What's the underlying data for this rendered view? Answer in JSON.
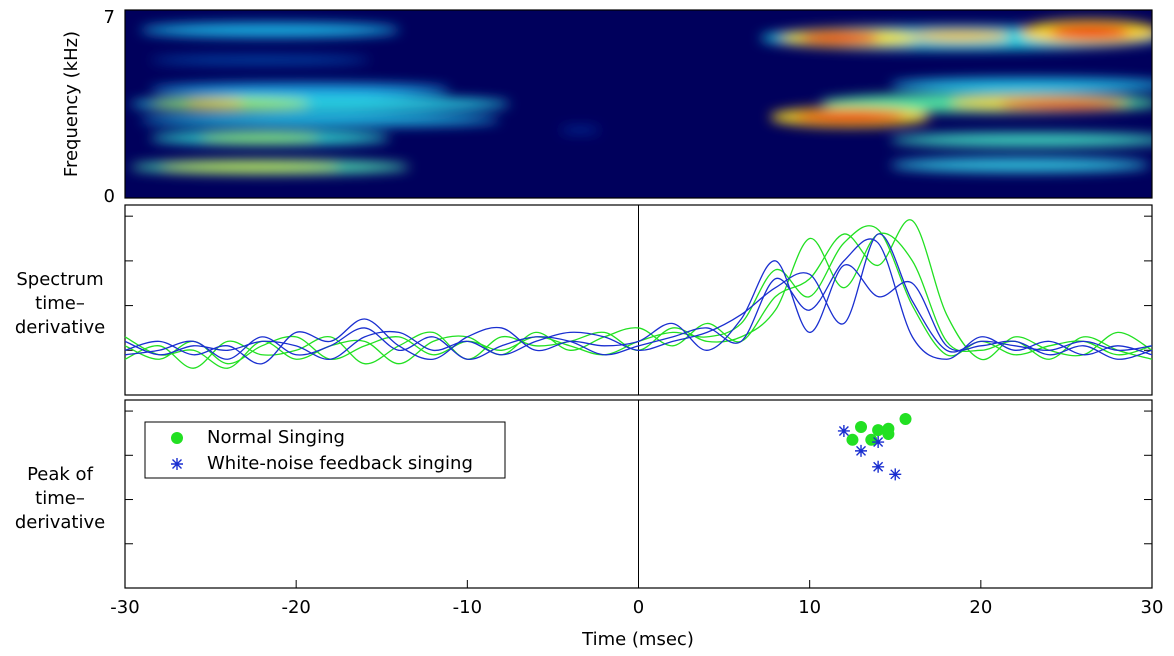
{
  "chart_data": [
    {
      "type": "spectrogram",
      "ylabel": "Frequency (kHz)",
      "xlim": [
        -30,
        30
      ],
      "ylim": [
        0,
        7
      ],
      "yticks": [
        0,
        7
      ]
    },
    {
      "type": "line",
      "ylabel": [
        "Spectrum",
        "time–",
        "derivative"
      ],
      "x": [
        -30,
        -28,
        -26,
        -24,
        -22,
        -20,
        -18,
        -16,
        -14,
        -12,
        -10,
        -8,
        -6,
        -4,
        -2,
        0,
        2,
        4,
        6,
        8,
        10,
        12,
        14,
        16,
        18,
        20,
        22,
        24,
        26,
        28,
        30
      ],
      "series": [
        {
          "color": "#22e022",
          "values": [
            0.1,
            -0.2,
            0.2,
            -0.3,
            0.1,
            0.3,
            -0.2,
            0.1,
            0.3,
            -0.1,
            0.2,
            0.0,
            0.3,
            0.1,
            -0.1,
            0.2,
            0.4,
            0.3,
            0.6,
            1.8,
            1.2,
            2.4,
            2.7,
            1.0,
            -0.1,
            0.2,
            -0.1,
            0.1,
            0.2,
            -0.1,
            0.1
          ]
        },
        {
          "color": "#22e022",
          "values": [
            -0.2,
            0.1,
            -0.4,
            0.2,
            -0.1,
            0.0,
            0.3,
            -0.3,
            0.1,
            0.4,
            -0.2,
            0.3,
            0.1,
            0.2,
            0.4,
            0.0,
            0.5,
            0.2,
            0.3,
            0.9,
            2.5,
            1.4,
            2.6,
            2.0,
            0.2,
            0.0,
            0.2,
            -0.2,
            0.3,
            0.0,
            -0.2
          ]
        },
        {
          "color": "#22e022",
          "values": [
            0.3,
            -0.1,
            0.0,
            -0.4,
            0.2,
            -0.2,
            0.1,
            0.2,
            -0.3,
            0.2,
            0.3,
            -0.1,
            0.4,
            0.0,
            0.3,
            0.5,
            0.1,
            0.6,
            0.2,
            1.2,
            1.6,
            2.6,
            1.9,
            2.9,
            0.8,
            -0.2,
            0.3,
            0.0,
            -0.1,
            0.4,
            0.0
          ]
        },
        {
          "color": "#1a2fd0",
          "values": [
            0.0,
            0.2,
            -0.1,
            0.1,
            -0.3,
            0.4,
            0.2,
            0.7,
            0.1,
            -0.2,
            0.3,
            0.5,
            0.0,
            0.2,
            0.1,
            0.2,
            0.6,
            0.0,
            0.7,
            2.0,
            0.4,
            1.9,
            1.2,
            1.5,
            0.1,
            0.1,
            0.2,
            -0.1,
            0.1,
            -0.2,
            0.0
          ]
        },
        {
          "color": "#1a2fd0",
          "values": [
            -0.1,
            0.0,
            0.2,
            -0.2,
            0.3,
            -0.1,
            0.1,
            0.5,
            0.0,
            0.3,
            -0.2,
            0.1,
            0.3,
            0.2,
            -0.1,
            0.1,
            0.3,
            0.5,
            0.2,
            1.6,
            0.9,
            2.0,
            2.4,
            0.3,
            -0.2,
            0.3,
            0.0,
            0.2,
            -0.1,
            0.1,
            -0.1
          ]
        },
        {
          "color": "#1a2fd0",
          "values": [
            0.2,
            -0.1,
            0.1,
            0.0,
            0.2,
            0.1,
            -0.2,
            0.3,
            0.4,
            0.0,
            0.2,
            -0.1,
            0.2,
            0.4,
            0.3,
            0.0,
            0.2,
            0.4,
            0.8,
            1.4,
            1.7,
            0.6,
            2.6,
            1.1,
            0.0,
            0.2,
            0.1,
            0.0,
            0.2,
            0.0,
            0.1
          ]
        }
      ],
      "xlim": [
        -30,
        30
      ],
      "ylim": [
        -1,
        3.25
      ],
      "yticks": [
        0,
        1,
        2,
        3
      ]
    },
    {
      "type": "scatter",
      "ylabel": [
        "Peak of",
        "time–",
        "derivative"
      ],
      "xlabel": "Time (msec)",
      "series": [
        {
          "name": "Normal Singing",
          "color": "#22e022",
          "marker": "circle",
          "x": [
            15.6,
            13,
            14,
            14.6,
            14.6,
            13.6,
            12.5
          ],
          "values": [
            2.82,
            2.64,
            2.57,
            2.6,
            2.48,
            2.35,
            2.35
          ]
        },
        {
          "name": "White-noise feedback singing",
          "color": "#1a2fd0",
          "marker": "star",
          "x": [
            12,
            14,
            13,
            14,
            15
          ],
          "values": [
            2.55,
            2.3,
            2.1,
            1.74,
            1.57
          ]
        }
      ],
      "legend": "upper left",
      "xlim": [
        -30,
        30
      ],
      "xticks": [
        -30,
        -20,
        -10,
        0,
        10,
        20,
        30
      ],
      "ylim": [
        -1,
        3.25
      ],
      "yticks": [
        0,
        1,
        2,
        3
      ]
    }
  ]
}
